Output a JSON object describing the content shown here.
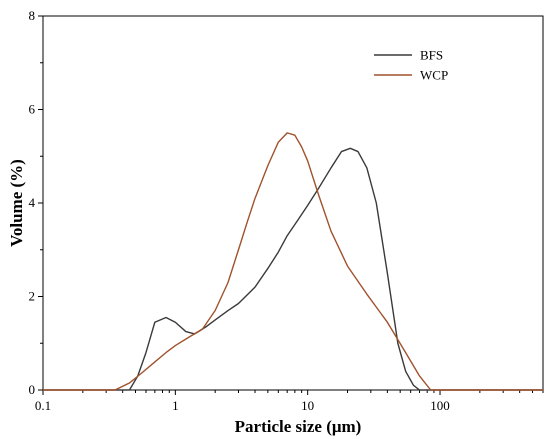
{
  "chart_data": {
    "type": "line",
    "title": "",
    "xlabel": "Particle size (μm)",
    "ylabel": "Volume (%)",
    "x_scale": "log",
    "xlim": [
      0.1,
      600
    ],
    "ylim": [
      0,
      8
    ],
    "x_ticks": [
      {
        "value": 0.1,
        "label": "0.1"
      },
      {
        "value": 1,
        "label": "1"
      },
      {
        "value": 10,
        "label": "10"
      },
      {
        "value": 100,
        "label": "100"
      }
    ],
    "y_ticks": [
      {
        "value": 0,
        "label": "0"
      },
      {
        "value": 2,
        "label": "2"
      },
      {
        "value": 4,
        "label": "4"
      },
      {
        "value": 6,
        "label": "6"
      },
      {
        "value": 8,
        "label": "8"
      }
    ],
    "grid": false,
    "legend_position": "top-right",
    "series": [
      {
        "name": "BFS",
        "color": "#3a3a3a",
        "points": [
          [
            0.1,
            0
          ],
          [
            0.45,
            0
          ],
          [
            0.52,
            0.3
          ],
          [
            0.6,
            0.8
          ],
          [
            0.7,
            1.45
          ],
          [
            0.85,
            1.55
          ],
          [
            1.0,
            1.45
          ],
          [
            1.2,
            1.25
          ],
          [
            1.4,
            1.2
          ],
          [
            1.7,
            1.35
          ],
          [
            2.0,
            1.5
          ],
          [
            2.5,
            1.7
          ],
          [
            3.0,
            1.85
          ],
          [
            4.0,
            2.2
          ],
          [
            5.0,
            2.6
          ],
          [
            6.0,
            2.95
          ],
          [
            7.0,
            3.3
          ],
          [
            8.5,
            3.65
          ],
          [
            10.0,
            3.95
          ],
          [
            12.0,
            4.3
          ],
          [
            15.0,
            4.75
          ],
          [
            18.0,
            5.1
          ],
          [
            21.0,
            5.17
          ],
          [
            24.0,
            5.1
          ],
          [
            28.0,
            4.75
          ],
          [
            33.0,
            4.0
          ],
          [
            40.0,
            2.5
          ],
          [
            48.0,
            1.0
          ],
          [
            55.0,
            0.4
          ],
          [
            63.0,
            0.1
          ],
          [
            70.0,
            0
          ],
          [
            600,
            0
          ]
        ]
      },
      {
        "name": "WCP",
        "color": "#a0522d",
        "points": [
          [
            0.1,
            0
          ],
          [
            0.35,
            0
          ],
          [
            0.45,
            0.15
          ],
          [
            0.55,
            0.35
          ],
          [
            0.7,
            0.6
          ],
          [
            0.85,
            0.8
          ],
          [
            1.0,
            0.95
          ],
          [
            1.3,
            1.15
          ],
          [
            1.6,
            1.3
          ],
          [
            2.0,
            1.7
          ],
          [
            2.5,
            2.3
          ],
          [
            3.0,
            3.0
          ],
          [
            3.5,
            3.6
          ],
          [
            4.0,
            4.1
          ],
          [
            5.0,
            4.8
          ],
          [
            6.0,
            5.3
          ],
          [
            7.0,
            5.5
          ],
          [
            8.0,
            5.45
          ],
          [
            9.0,
            5.2
          ],
          [
            10.0,
            4.9
          ],
          [
            12.0,
            4.2
          ],
          [
            15.0,
            3.4
          ],
          [
            20.0,
            2.65
          ],
          [
            28.0,
            2.05
          ],
          [
            40.0,
            1.45
          ],
          [
            55.0,
            0.8
          ],
          [
            70.0,
            0.3
          ],
          [
            85.0,
            0
          ],
          [
            600,
            0
          ]
        ]
      }
    ]
  }
}
